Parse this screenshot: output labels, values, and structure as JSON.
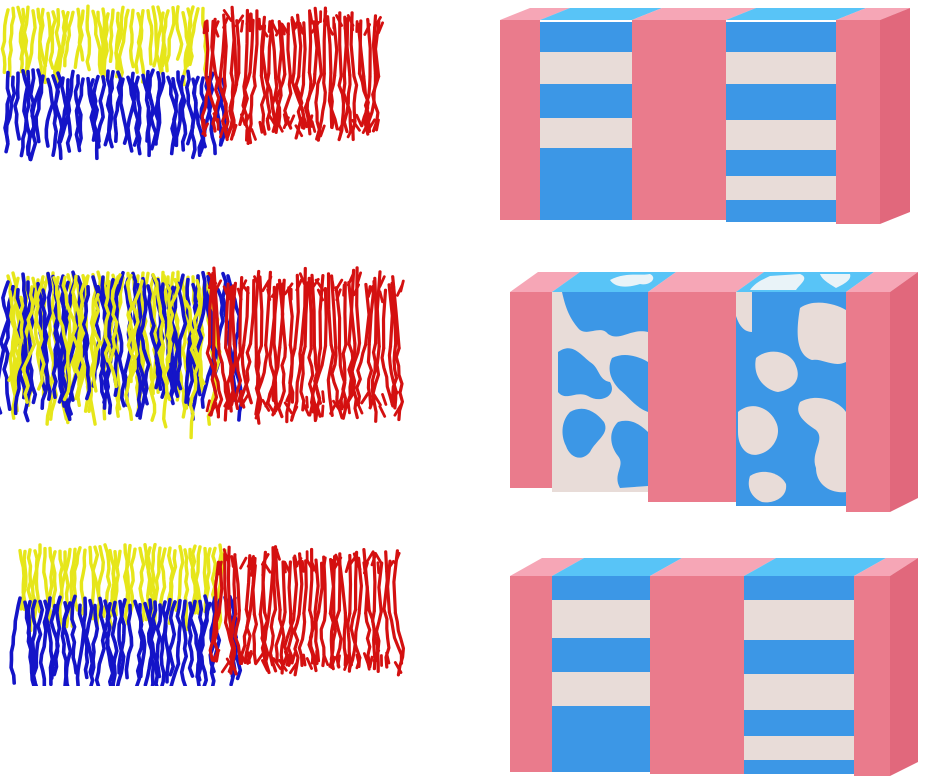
{
  "figure": {
    "colors": {
      "strand_yellow": "#e6e61a",
      "strand_blue": "#1414c8",
      "strand_red": "#d41010",
      "box_pink_front": "#ea7b8c",
      "box_pink_top": "#f6a6b6",
      "box_pink_side": "#e1687c",
      "box_blue": "#3c97e6",
      "box_blue_top": "#58c4f7",
      "box_cream": "#e8dcd8",
      "box_cream_top": "#e9f3f8"
    },
    "rows": [
      {
        "id": "row-1",
        "morphology": "lamellar-striped"
      },
      {
        "id": "row-2",
        "morphology": "disordered"
      },
      {
        "id": "row-3",
        "morphology": "lamellar-striped"
      }
    ]
  }
}
